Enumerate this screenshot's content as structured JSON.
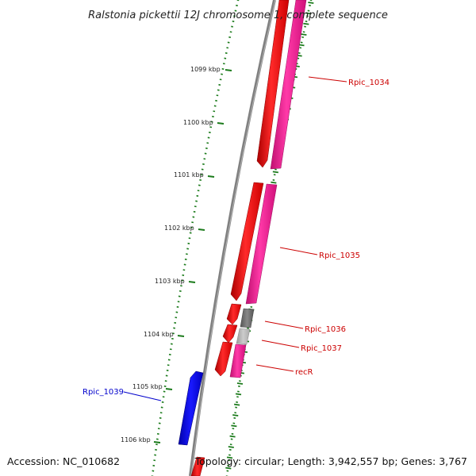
{
  "title": "Ralstonia pickettii 12J chromosome 1, complete sequence",
  "accession": "Accession: NC_010682",
  "summary": "Topology: circular; Length: 3,942,557 bp; Genes: 3,767",
  "colors": {
    "backbone": "#888888",
    "tick": "#1a7a1a",
    "forward_gene": "#ff1493",
    "reverse_cds": "#ff0000",
    "rna_gene": "#777777",
    "rna_gene_light": "#bbbbbb",
    "highlight": "#0000ff",
    "label_default": "#cc0000",
    "label_highlight": "#0000cc"
  },
  "kbp_ticks": [
    {
      "label": "1099 kbp"
    },
    {
      "label": "1100 kbp"
    },
    {
      "label": "1101 kbp"
    },
    {
      "label": "1102 kbp"
    },
    {
      "label": "1103 kbp"
    },
    {
      "label": "1104 kbp"
    },
    {
      "label": "1105 kbp"
    },
    {
      "label": "1106 kbp"
    }
  ],
  "gene_labels": [
    {
      "name": "Rpic_1034",
      "color": "#cc0000"
    },
    {
      "name": "Rpic_1035",
      "color": "#cc0000"
    },
    {
      "name": "Rpic_1036",
      "color": "#cc0000"
    },
    {
      "name": "Rpic_1037",
      "color": "#cc0000"
    },
    {
      "name": "recR",
      "color": "#cc0000"
    },
    {
      "name": "Rpic_1039",
      "color": "#0000cc"
    }
  ]
}
